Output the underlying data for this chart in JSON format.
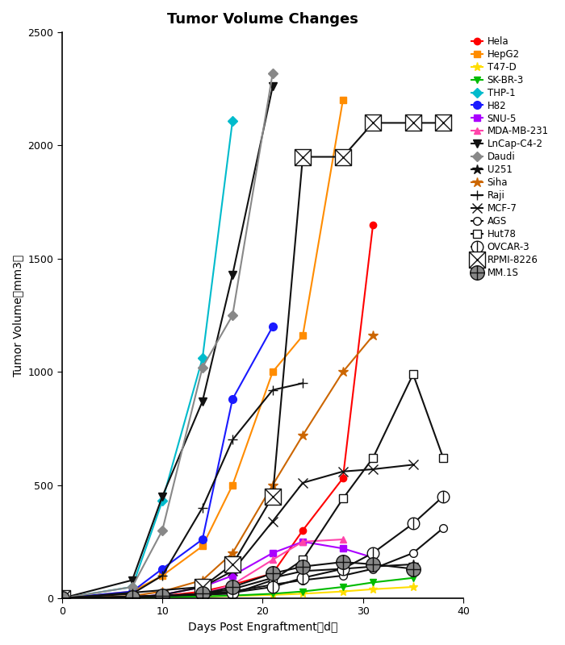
{
  "title": "Tumor Volume Changes",
  "xlabel": "Days Post Engraftment（d）",
  "ylabel": "Tumor Volume（mm3）",
  "xlim": [
    0,
    40
  ],
  "ylim": [
    0,
    2500
  ],
  "xticks": [
    0,
    10,
    20,
    30,
    40
  ],
  "yticks": [
    0,
    500,
    1000,
    1500,
    2000,
    2500
  ],
  "series": [
    {
      "label": "Hela",
      "color": "#ff0000",
      "marker": "o",
      "markerfacecolor": "#ff0000",
      "markersize": 6,
      "linewidth": 1.5,
      "x": [
        0,
        7,
        10,
        14,
        17,
        21,
        24,
        28,
        31
      ],
      "y": [
        0,
        5,
        10,
        30,
        60,
        110,
        300,
        530,
        1650
      ]
    },
    {
      "label": "HepG2",
      "color": "#ff8c00",
      "marker": "s",
      "markerfacecolor": "#ff8c00",
      "markersize": 6,
      "linewidth": 1.5,
      "x": [
        0,
        7,
        10,
        14,
        17,
        21,
        24,
        28
      ],
      "y": [
        0,
        30,
        100,
        230,
        500,
        1000,
        1160,
        2200
      ]
    },
    {
      "label": "T47-D",
      "color": "#ffdd00",
      "marker": "*",
      "markerfacecolor": "#ffdd00",
      "markersize": 8,
      "linewidth": 1.5,
      "x": [
        0,
        7,
        10,
        14,
        17,
        21,
        24,
        28,
        31,
        35
      ],
      "y": [
        0,
        2,
        5,
        8,
        10,
        15,
        20,
        30,
        40,
        50
      ]
    },
    {
      "label": "SK-BR-3",
      "color": "#00bb00",
      "marker": "v",
      "markerfacecolor": "#00bb00",
      "markersize": 6,
      "linewidth": 1.5,
      "x": [
        0,
        7,
        10,
        14,
        17,
        21,
        24,
        28,
        31,
        35
      ],
      "y": [
        0,
        2,
        5,
        8,
        12,
        20,
        30,
        50,
        70,
        90
      ]
    },
    {
      "label": "THP-1",
      "color": "#00bbcc",
      "marker": "D",
      "markerfacecolor": "#00bbcc",
      "markersize": 6,
      "linewidth": 1.5,
      "x": [
        0,
        7,
        10,
        14,
        17
      ],
      "y": [
        0,
        50,
        430,
        1060,
        2110
      ]
    },
    {
      "label": "H82",
      "color": "#1a1aff",
      "marker": "o",
      "markerfacecolor": "#1a1aff",
      "markersize": 7,
      "linewidth": 1.5,
      "x": [
        0,
        7,
        10,
        14,
        17,
        21
      ],
      "y": [
        0,
        30,
        130,
        260,
        880,
        1200
      ]
    },
    {
      "label": "SNU-5",
      "color": "#aa00ff",
      "marker": "s",
      "markerfacecolor": "#aa00ff",
      "markersize": 6,
      "linewidth": 1.5,
      "x": [
        0,
        7,
        10,
        14,
        17,
        21,
        24,
        28,
        31
      ],
      "y": [
        0,
        5,
        15,
        50,
        100,
        200,
        250,
        220,
        180
      ]
    },
    {
      "label": "MDA-MB-231",
      "color": "#ff44aa",
      "marker": "^",
      "markerfacecolor": "#ff44aa",
      "markersize": 6,
      "linewidth": 1.5,
      "x": [
        0,
        7,
        10,
        14,
        17,
        21,
        24,
        28
      ],
      "y": [
        0,
        5,
        10,
        20,
        60,
        170,
        250,
        260
      ]
    },
    {
      "label": "LnCap-C4-2",
      "color": "#111111",
      "marker": "v",
      "markerfacecolor": "#111111",
      "markersize": 7,
      "linewidth": 1.5,
      "x": [
        0,
        7,
        10,
        14,
        17,
        21
      ],
      "y": [
        0,
        80,
        450,
        870,
        1430,
        2260
      ]
    },
    {
      "label": "Daudi",
      "color": "#888888",
      "marker": "D",
      "markerfacecolor": "#888888",
      "markersize": 6,
      "linewidth": 1.5,
      "x": [
        0,
        7,
        10,
        14,
        17,
        21
      ],
      "y": [
        0,
        50,
        300,
        1020,
        1250,
        2320
      ]
    },
    {
      "label": "U251",
      "color": "#111111",
      "marker": "*",
      "markerfacecolor": "#111111",
      "markersize": 9,
      "linewidth": 1.5,
      "x": [
        0,
        7,
        10,
        14,
        17,
        21,
        24,
        28,
        31,
        35
      ],
      "y": [
        0,
        5,
        10,
        20,
        40,
        90,
        120,
        130,
        140,
        150
      ]
    },
    {
      "label": "Siha",
      "color": "#cc6600",
      "marker": "*",
      "markerfacecolor": "#cc6600",
      "markersize": 9,
      "linewidth": 1.5,
      "x": [
        0,
        7,
        10,
        14,
        17,
        21,
        24,
        28,
        31
      ],
      "y": [
        0,
        10,
        30,
        80,
        200,
        500,
        720,
        1000,
        1160
      ]
    },
    {
      "label": "Raji",
      "color": "#111111",
      "marker": "+",
      "markerfacecolor": "#111111",
      "markersize": 9,
      "linewidth": 1.5,
      "x": [
        0,
        7,
        10,
        14,
        17,
        21,
        24
      ],
      "y": [
        0,
        20,
        100,
        400,
        700,
        920,
        950
      ]
    },
    {
      "label": "MCF-7",
      "color": "#111111",
      "marker": "x",
      "markerfacecolor": "#111111",
      "markersize": 8,
      "linewidth": 1.5,
      "x": [
        0,
        7,
        10,
        14,
        17,
        21,
        24,
        28,
        31,
        35
      ],
      "y": [
        0,
        5,
        15,
        50,
        120,
        340,
        510,
        560,
        570,
        590
      ]
    },
    {
      "label": "AGS",
      "color": "#111111",
      "marker": "o",
      "markerfacecolor": "white",
      "markersize": 7,
      "linewidth": 1.5,
      "x": [
        0,
        7,
        10,
        14,
        17,
        21,
        24,
        28,
        31,
        35,
        38
      ],
      "y": [
        0,
        5,
        10,
        20,
        30,
        60,
        80,
        100,
        130,
        200,
        310
      ]
    },
    {
      "label": "Hut78",
      "color": "#111111",
      "marker": "s",
      "markerfacecolor": "white",
      "markersize": 7,
      "linewidth": 1.5,
      "x": [
        0,
        17,
        21,
        24,
        28,
        31,
        35,
        38
      ],
      "y": [
        0,
        20,
        80,
        170,
        440,
        620,
        990,
        620
      ]
    },
    {
      "label": "OVCAR-3",
      "color": "#111111",
      "marker": "special_ovcar",
      "markerfacecolor": "white",
      "markersize": 7,
      "linewidth": 1.5,
      "x": [
        0,
        7,
        10,
        14,
        17,
        21,
        24,
        28,
        31,
        35,
        38
      ],
      "y": [
        0,
        5,
        10,
        15,
        25,
        50,
        90,
        130,
        200,
        330,
        450
      ]
    },
    {
      "label": "RPMI-8226",
      "color": "#111111",
      "marker": "special_rpmi",
      "markerfacecolor": "white",
      "markersize": 8,
      "linewidth": 1.5,
      "x": [
        0,
        14,
        17,
        21,
        24,
        28,
        31,
        35,
        38
      ],
      "y": [
        0,
        50,
        150,
        450,
        1950,
        1950,
        2100,
        2100,
        2100
      ]
    },
    {
      "label": "MM.1S",
      "color": "#111111",
      "marker": "special_mm1s",
      "markerfacecolor": "#888888",
      "markersize": 7,
      "linewidth": 1.5,
      "x": [
        0,
        7,
        10,
        14,
        17,
        21,
        24,
        28,
        31,
        35
      ],
      "y": [
        0,
        5,
        10,
        20,
        50,
        110,
        140,
        160,
        150,
        130
      ]
    }
  ]
}
